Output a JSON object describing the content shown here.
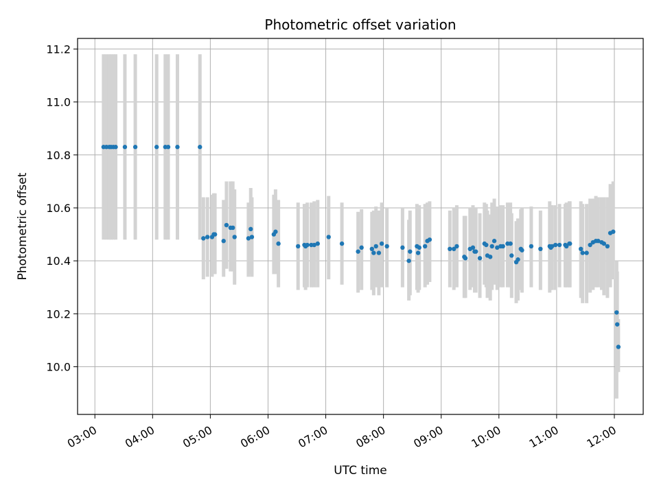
{
  "chart_data": {
    "type": "scatter",
    "title": "Photometric offset variation",
    "xlabel": "UTC time",
    "ylabel": "Photometric offset",
    "xlim": [
      2.7,
      12.5
    ],
    "ylim": [
      9.82,
      11.24
    ],
    "grid": true,
    "x_ticks": [
      3,
      4,
      5,
      6,
      7,
      8,
      9,
      10,
      11,
      12
    ],
    "x_tick_labels": [
      "03:00",
      "04:00",
      "05:00",
      "06:00",
      "07:00",
      "08:00",
      "09:00",
      "10:00",
      "11:00",
      "12:00"
    ],
    "y_ticks": [
      10.0,
      10.2,
      10.4,
      10.6,
      10.8,
      11.0,
      11.2
    ],
    "y_tick_labels": [
      "10.0",
      "10.2",
      "10.4",
      "10.6",
      "10.8",
      "11.0",
      "11.2"
    ],
    "marker_color": "#1f77b4",
    "errorbar_color": "#d3d3d3",
    "series": [
      {
        "name": "photometric offset",
        "x": [
          3.15,
          3.2,
          3.25,
          3.28,
          3.32,
          3.36,
          3.52,
          3.7,
          4.07,
          4.22,
          4.27,
          4.43,
          4.82,
          4.88,
          4.95,
          5.03,
          5.06,
          5.08,
          5.23,
          5.28,
          5.35,
          5.39,
          5.42,
          5.66,
          5.7,
          5.72,
          6.1,
          6.13,
          6.18,
          6.52,
          6.63,
          6.65,
          6.68,
          6.75,
          6.8,
          6.86,
          7.05,
          7.28,
          7.56,
          7.62,
          7.8,
          7.83,
          7.87,
          7.92,
          7.97,
          8.06,
          8.33,
          8.44,
          8.46,
          8.58,
          8.6,
          8.62,
          8.72,
          8.76,
          8.8,
          9.15,
          9.22,
          9.27,
          9.4,
          9.42,
          9.5,
          9.55,
          9.58,
          9.6,
          9.67,
          9.75,
          9.78,
          9.8,
          9.85,
          9.88,
          9.92,
          9.97,
          10.03,
          10.07,
          10.15,
          10.2,
          10.22,
          10.3,
          10.33,
          10.38,
          10.4,
          10.56,
          10.72,
          10.88,
          10.9,
          10.92,
          10.98,
          11.05,
          11.15,
          11.17,
          11.22,
          11.23,
          11.42,
          11.45,
          11.52,
          11.58,
          11.63,
          11.68,
          11.72,
          11.78,
          11.82,
          11.88,
          11.93,
          11.98,
          12.04,
          12.05,
          12.07
        ],
        "y": [
          10.83,
          10.83,
          10.83,
          10.83,
          10.83,
          10.83,
          10.83,
          10.83,
          10.83,
          10.83,
          10.83,
          10.83,
          10.83,
          10.485,
          10.49,
          10.49,
          10.5,
          10.5,
          10.475,
          10.535,
          10.525,
          10.525,
          10.49,
          10.485,
          10.52,
          10.49,
          10.5,
          10.51,
          10.465,
          10.455,
          10.46,
          10.455,
          10.46,
          10.46,
          10.46,
          10.465,
          10.49,
          10.465,
          10.435,
          10.45,
          10.445,
          10.43,
          10.455,
          10.43,
          10.465,
          10.455,
          10.45,
          10.4,
          10.435,
          10.455,
          10.43,
          10.45,
          10.455,
          10.475,
          10.48,
          10.445,
          10.445,
          10.455,
          10.415,
          10.41,
          10.445,
          10.45,
          10.435,
          10.435,
          10.41,
          10.465,
          10.46,
          10.42,
          10.415,
          10.455,
          10.475,
          10.45,
          10.455,
          10.455,
          10.465,
          10.465,
          10.42,
          10.395,
          10.405,
          10.445,
          10.44,
          10.455,
          10.445,
          10.455,
          10.45,
          10.455,
          10.46,
          10.46,
          10.46,
          10.455,
          10.465,
          10.465,
          10.445,
          10.43,
          10.43,
          10.46,
          10.47,
          10.475,
          10.475,
          10.47,
          10.465,
          10.455,
          10.505,
          10.51,
          10.205,
          10.16,
          10.075
        ],
        "err_low": [
          10.48,
          10.48,
          10.48,
          10.48,
          10.48,
          10.48,
          10.48,
          10.48,
          10.48,
          10.48,
          10.48,
          10.48,
          10.48,
          10.33,
          10.34,
          10.34,
          10.35,
          10.35,
          10.34,
          10.37,
          10.36,
          10.36,
          10.31,
          10.34,
          10.35,
          10.34,
          10.35,
          10.35,
          10.3,
          10.29,
          10.3,
          10.29,
          10.3,
          10.3,
          10.3,
          10.3,
          10.33,
          10.31,
          10.28,
          10.29,
          10.29,
          10.27,
          10.3,
          10.27,
          10.3,
          10.3,
          10.3,
          10.25,
          10.27,
          10.29,
          10.28,
          10.29,
          10.3,
          10.31,
          10.32,
          10.3,
          10.29,
          10.3,
          10.26,
          10.26,
          10.29,
          10.3,
          10.28,
          10.28,
          10.26,
          10.31,
          10.3,
          10.26,
          10.25,
          10.29,
          10.31,
          10.29,
          10.3,
          10.3,
          10.3,
          10.3,
          10.26,
          10.24,
          10.25,
          10.29,
          10.28,
          10.3,
          10.29,
          10.28,
          10.29,
          10.29,
          10.29,
          10.3,
          10.3,
          10.3,
          10.3,
          10.3,
          10.26,
          10.24,
          10.24,
          10.28,
          10.29,
          10.3,
          10.3,
          10.29,
          10.27,
          10.26,
          10.3,
          10.33,
          9.88,
          9.98,
          9.98
        ],
        "err_high": [
          11.18,
          11.18,
          11.18,
          11.18,
          11.18,
          11.18,
          11.18,
          11.18,
          11.18,
          11.18,
          11.18,
          11.18,
          11.18,
          10.64,
          10.64,
          10.65,
          10.655,
          10.655,
          10.63,
          10.7,
          10.7,
          10.7,
          10.67,
          10.62,
          10.675,
          10.64,
          10.65,
          10.67,
          10.63,
          10.62,
          10.615,
          10.615,
          10.62,
          10.62,
          10.625,
          10.63,
          10.645,
          10.62,
          10.585,
          10.595,
          10.585,
          10.59,
          10.605,
          10.59,
          10.62,
          10.6,
          10.6,
          10.555,
          10.59,
          10.615,
          10.59,
          10.61,
          10.615,
          10.62,
          10.625,
          10.59,
          10.6,
          10.61,
          10.57,
          10.57,
          10.6,
          10.61,
          10.59,
          10.6,
          10.58,
          10.62,
          10.615,
          10.59,
          10.575,
          10.62,
          10.635,
          10.605,
          10.61,
          10.61,
          10.62,
          10.62,
          10.58,
          10.55,
          10.56,
          10.595,
          10.6,
          10.605,
          10.59,
          10.625,
          10.61,
          10.61,
          10.61,
          10.615,
          10.615,
          10.62,
          10.625,
          10.625,
          10.625,
          10.615,
          10.615,
          10.635,
          10.635,
          10.645,
          10.64,
          10.64,
          10.64,
          10.64,
          10.69,
          10.7,
          10.4,
          10.36,
          10.18
        ]
      }
    ]
  }
}
